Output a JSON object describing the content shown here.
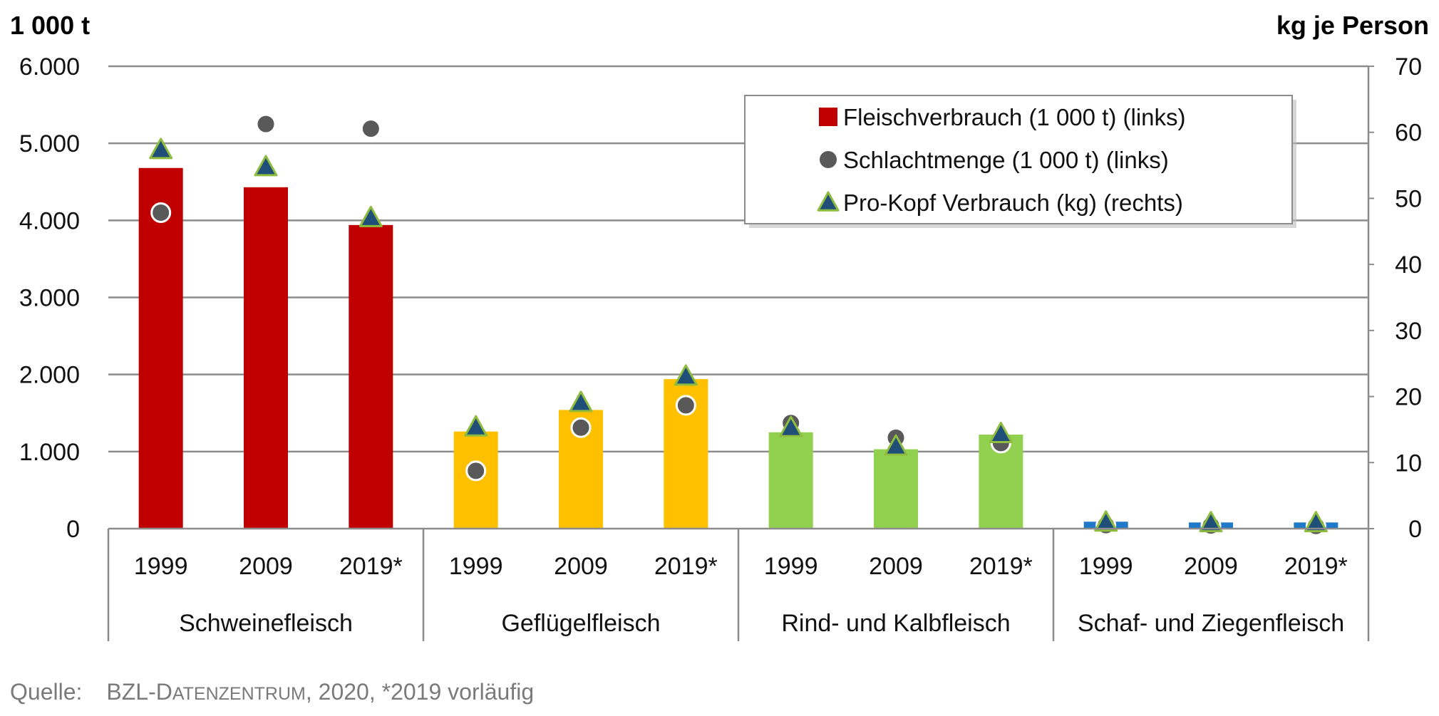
{
  "chart_data": {
    "type": "bar",
    "left_axis_label": "1 000 t",
    "right_axis_label": "kg je Person",
    "left_ylim": [
      0,
      6000
    ],
    "right_ylim": [
      0,
      70
    ],
    "left_ticks": [
      0,
      1000,
      2000,
      3000,
      4000,
      5000,
      6000
    ],
    "left_tick_labels": [
      "0",
      "1.000",
      "2.000",
      "3.000",
      "4.000",
      "5.000",
      "6.000"
    ],
    "right_ticks": [
      0,
      10,
      20,
      30,
      40,
      50,
      60,
      70
    ],
    "right_tick_labels": [
      "0",
      "10",
      "20",
      "30",
      "40",
      "50",
      "60",
      "70"
    ],
    "grid": true,
    "legend_position": "top-right",
    "groups": [
      {
        "name": "Schweinefleisch",
        "color": "#c00000",
        "years": [
          "1999",
          "2009",
          "2019*"
        ],
        "fleischverbrauch": [
          4680,
          4430,
          3940
        ],
        "schlachtmenge": [
          4100,
          5250,
          5190
        ],
        "pro_kopf": [
          57.4,
          54.8,
          47.1
        ]
      },
      {
        "name": "Geflügelfleisch",
        "color": "#ffc000",
        "years": [
          "1999",
          "2009",
          "2019*"
        ],
        "fleischverbrauch": [
          1260,
          1540,
          1940
        ],
        "schlachtmenge": [
          750,
          1310,
          1600
        ],
        "pro_kopf": [
          15.4,
          19.1,
          23.1
        ]
      },
      {
        "name": "Rind- und Kalbfleisch",
        "color": "#92d050",
        "years": [
          "1999",
          "2009",
          "2019*"
        ],
        "fleischverbrauch": [
          1250,
          1030,
          1220
        ],
        "schlachtmenge": [
          1370,
          1180,
          1110
        ],
        "pro_kopf": [
          15.3,
          12.5,
          14.4
        ]
      },
      {
        "name": "Schaf- und Ziegenfleisch",
        "color": "#1f78c8",
        "years": [
          "1999",
          "2009",
          "2019*"
        ],
        "fleischverbrauch": [
          90,
          80,
          80
        ],
        "schlachtmenge": [
          45,
          40,
          35
        ],
        "pro_kopf": [
          1.0,
          0.9,
          0.9
        ]
      }
    ],
    "legend": [
      {
        "key": "fleischverbrauch",
        "label": "Fleischverbrauch (1 000 t) (links)",
        "color": "#c00000"
      },
      {
        "key": "schlachtmenge",
        "label": "Schlachtmenge (1 000 t) (links)",
        "color": "#595959"
      },
      {
        "key": "pro_kopf",
        "label": "Pro-Kopf Verbrauch (kg) (rechts)",
        "color": "#1f4e79",
        "outline": "#8fbc3f"
      }
    ]
  },
  "source": {
    "prefix": "Quelle:",
    "org_first": "BZL-D",
    "org_rest": "ATENZENTRUM",
    "suffix": ", 2020, *2019 vorläufig"
  }
}
